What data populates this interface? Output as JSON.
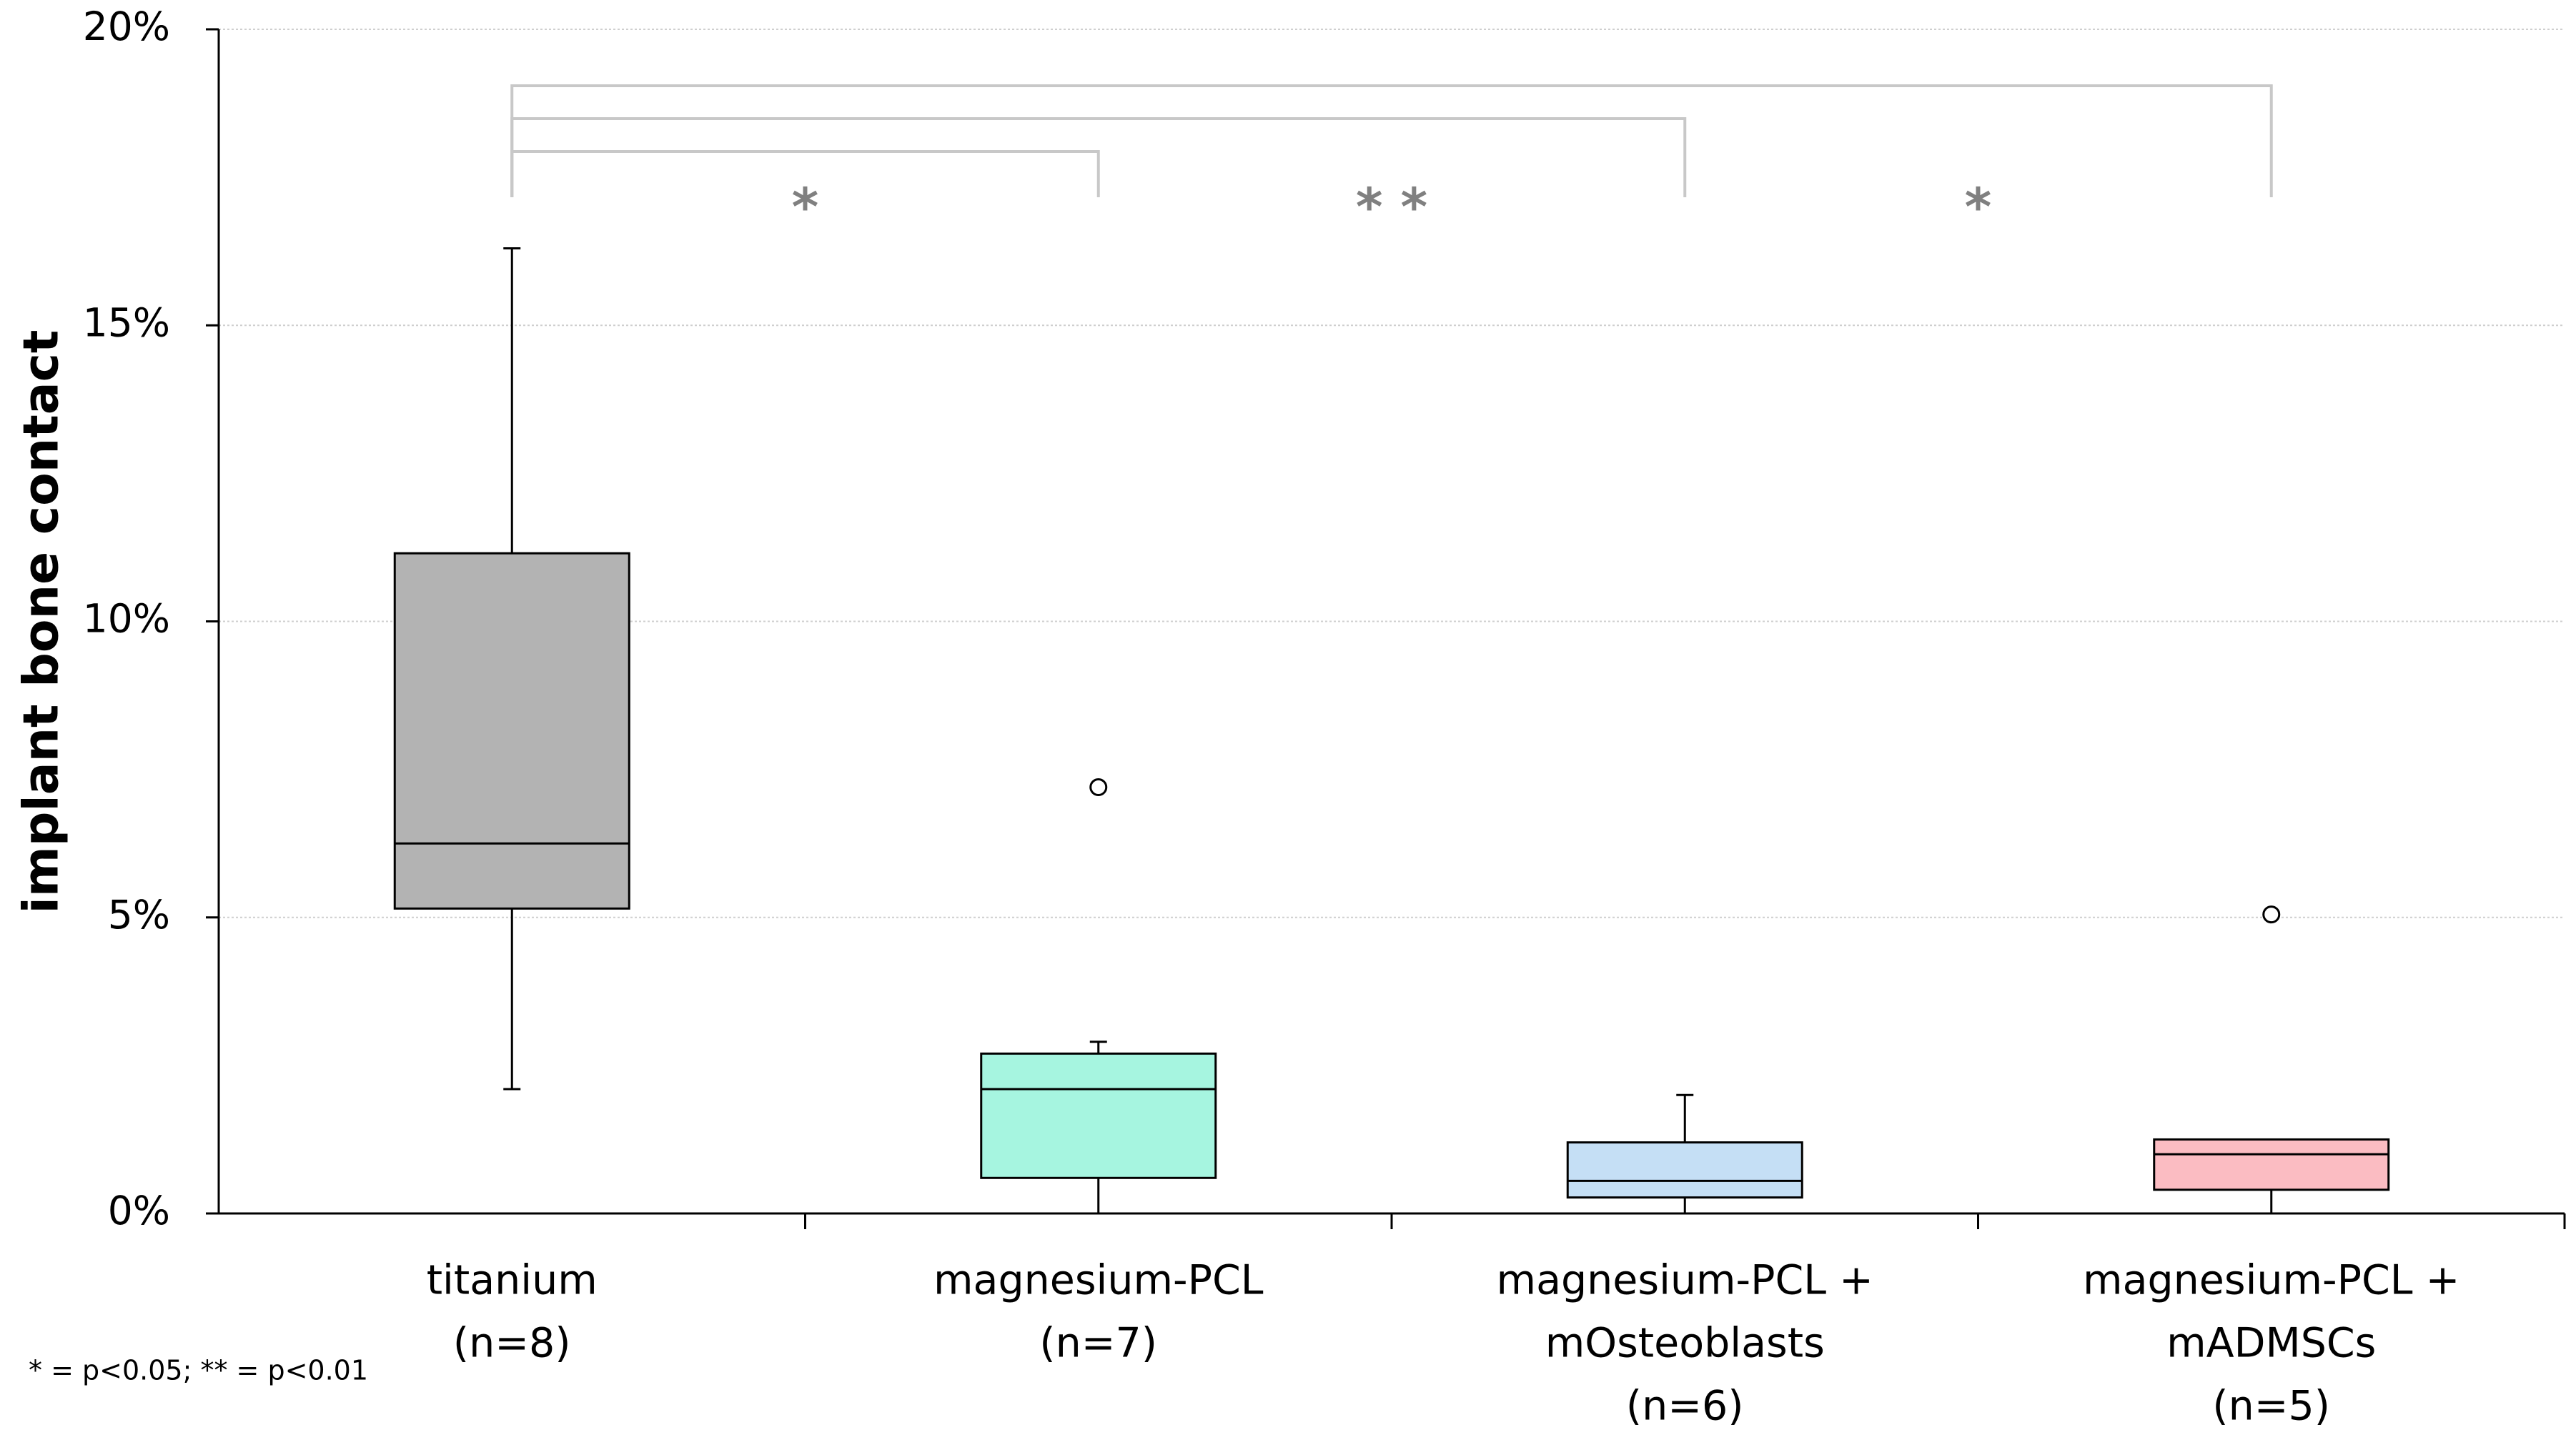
{
  "chart_data": {
    "type": "box",
    "y_label": "implant bone contact",
    "categories": [
      [
        "titanium",
        "(n=8)"
      ],
      [
        "magnesium-PCL",
        "(n=7)"
      ],
      [
        "magnesium-PCL +",
        "mOsteoblasts",
        "(n=6)"
      ],
      [
        "magnesium-PCL +",
        "mADMSCs",
        "(n=5)"
      ]
    ],
    "boxes": [
      {
        "color": "#b3b3b3",
        "min": 2.1,
        "q1": 5.15,
        "median": 6.25,
        "q3": 11.15,
        "max": 16.3,
        "outliers": []
      },
      {
        "color": "#a6f5e0",
        "min": 0,
        "q1": 0.6,
        "median": 2.1,
        "q3": 2.7,
        "max": 2.9,
        "outliers": [
          7.2
        ]
      },
      {
        "color": "#c5dff5",
        "min": 0,
        "q1": 0.27,
        "median": 0.55,
        "q3": 1.2,
        "max": 2.0,
        "outliers": []
      },
      {
        "color": "#fbbcc2",
        "min": 0,
        "q1": 0.4,
        "median": 1.0,
        "q3": 1.25,
        "max": 1.25,
        "outliers": [
          5.05
        ]
      }
    ],
    "ylim": [
      0,
      20
    ],
    "yticks": [
      {
        "value": 0,
        "label": "0%"
      },
      {
        "value": 5,
        "label": "5%"
      },
      {
        "value": 10,
        "label": "10%"
      },
      {
        "value": 15,
        "label": "15%"
      },
      {
        "value": 20,
        "label": "20%"
      }
    ],
    "grid": true,
    "annotations": [
      "*",
      "* *",
      "*"
    ],
    "footnote": "* = p<0.05; ** = p<0.01"
  }
}
